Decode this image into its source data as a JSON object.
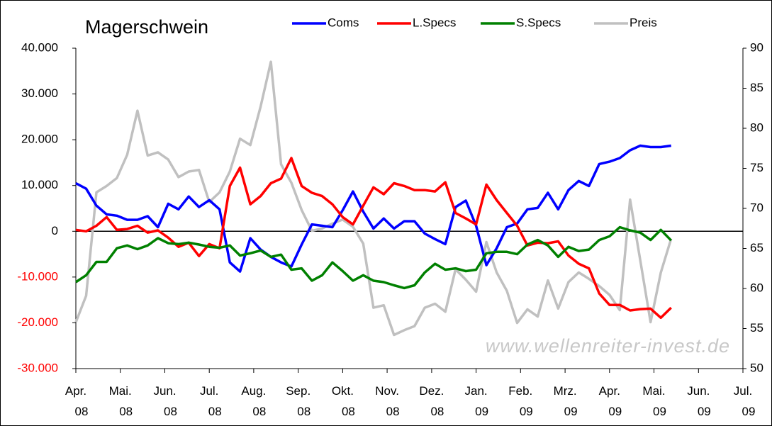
{
  "chart_data": {
    "type": "line",
    "title": "Magerschwein",
    "watermark": "www.wellenreiter-invest.de",
    "x": [
      0,
      1,
      2,
      3,
      4,
      5,
      6,
      7,
      8,
      9,
      10,
      11,
      12,
      13,
      14,
      15,
      16,
      17,
      18,
      19,
      20,
      21,
      22,
      23,
      24,
      25,
      26,
      27,
      28,
      29,
      30,
      31,
      32,
      33,
      34,
      35,
      36,
      37,
      38,
      39,
      40,
      41,
      42,
      43,
      44,
      45,
      46,
      47,
      48,
      49,
      50,
      51,
      52,
      53,
      54,
      55,
      56,
      57,
      58
    ],
    "xlim": [
      0,
      65
    ],
    "xticks": [
      {
        "value": 0,
        "label": "Apr. 08"
      },
      {
        "value": 4.33,
        "label": "Mai. 08"
      },
      {
        "value": 8.67,
        "label": "Jun. 08"
      },
      {
        "value": 13,
        "label": "Jul. 08"
      },
      {
        "value": 17.33,
        "label": "Aug. 08"
      },
      {
        "value": 21.67,
        "label": "Sep. 08"
      },
      {
        "value": 26,
        "label": "Okt. 08"
      },
      {
        "value": 30.33,
        "label": "Nov. 08"
      },
      {
        "value": 34.67,
        "label": "Dez. 08"
      },
      {
        "value": 39,
        "label": "Jan. 09"
      },
      {
        "value": 43.33,
        "label": "Feb. 09"
      },
      {
        "value": 47.67,
        "label": "Mrz. 09"
      },
      {
        "value": 52,
        "label": "Apr. 09"
      },
      {
        "value": 56.33,
        "label": "Mai. 09"
      },
      {
        "value": 60.67,
        "label": "Jun. 09"
      },
      {
        "value": 65,
        "label": "Jul. 09"
      }
    ],
    "ylim": [
      -30000,
      40000
    ],
    "yticks": [
      {
        "value": -30000,
        "label": "-30.000"
      },
      {
        "value": -20000,
        "label": "-20.000"
      },
      {
        "value": -10000,
        "label": "-10.000"
      },
      0,
      {
        "value": 10000,
        "label": "10.000"
      },
      {
        "value": 20000,
        "label": "20.000"
      },
      {
        "value": 30000,
        "label": "30.000"
      },
      {
        "value": 40000,
        "label": "40.000"
      }
    ],
    "y2lim": [
      50,
      90
    ],
    "y2ticks": [
      50,
      55,
      60,
      65,
      70,
      75,
      80,
      85,
      90
    ],
    "series": [
      {
        "name": "Coms",
        "color": "#0000ff",
        "values": [
          10500,
          9300,
          5600,
          3700,
          3400,
          2500,
          2500,
          3300,
          900,
          6000,
          4800,
          7600,
          5300,
          6800,
          4800,
          -6800,
          -8800,
          -1500,
          -4000,
          -5600,
          -6800,
          -7700,
          -2900,
          1500,
          1200,
          900,
          4600,
          8700,
          4300,
          600,
          2800,
          600,
          2200,
          2200,
          -500,
          -1700,
          -2800,
          5300,
          6700,
          1200,
          -7400,
          -3700,
          900,
          1700,
          4800,
          5100,
          8400,
          4800,
          9000,
          11000,
          9900,
          14700,
          15200,
          16000,
          17700,
          18700,
          18400,
          18400,
          18700
        ]
      },
      {
        "name": "L.Specs",
        "color": "#ff0000",
        "values": [
          300,
          0,
          1200,
          3100,
          300,
          500,
          1200,
          -300,
          200,
          -1400,
          -3400,
          -2500,
          -5400,
          -2800,
          -3700,
          9900,
          13900,
          5900,
          7700,
          10500,
          11500,
          16000,
          9900,
          8400,
          7700,
          5900,
          3100,
          1500,
          5600,
          9600,
          8100,
          10500,
          9900,
          9000,
          9000,
          8700,
          10700,
          4000,
          2800,
          1500,
          10200,
          6800,
          4000,
          1200,
          -3100,
          -2500,
          -2600,
          -2200,
          -5300,
          -7100,
          -8100,
          -13600,
          -16100,
          -16100,
          -17300,
          -17000,
          -16900,
          -18900,
          -16700
        ]
      },
      {
        "name": "S.Specs",
        "color": "#008000",
        "values": [
          -11100,
          -9600,
          -6700,
          -6700,
          -3700,
          -3100,
          -3900,
          -3100,
          -1500,
          -2600,
          -2800,
          -2500,
          -2900,
          -3400,
          -3600,
          -3100,
          -5300,
          -4800,
          -4200,
          -5600,
          -5100,
          -8400,
          -8100,
          -10800,
          -9600,
          -6800,
          -8700,
          -10800,
          -9600,
          -10800,
          -11100,
          -11800,
          -12400,
          -11800,
          -9000,
          -7100,
          -8400,
          -8100,
          -8700,
          -8400,
          -4800,
          -4500,
          -4500,
          -5000,
          -2900,
          -1900,
          -3100,
          -5600,
          -3400,
          -4300,
          -4000,
          -1900,
          -1100,
          900,
          200,
          -300,
          -1900,
          300,
          -2000
        ]
      },
      {
        "name": "Preis",
        "color": "#c0c0c0",
        "axis": "y2",
        "values": [
          55.8,
          59.1,
          72.0,
          72.8,
          73.8,
          76.7,
          82.2,
          76.6,
          77.0,
          76.1,
          73.9,
          74.6,
          74.8,
          70.8,
          72.0,
          74.6,
          78.7,
          77.9,
          82.7,
          88.3,
          75.5,
          73.2,
          69.8,
          67.2,
          67.5,
          68.1,
          68.6,
          67.7,
          65.6,
          57.6,
          57.9,
          54.2,
          54.8,
          55.3,
          57.6,
          58.1,
          57.1,
          62.4,
          61.1,
          59.6,
          65.8,
          62.0,
          59.7,
          55.7,
          57.4,
          56.5,
          61.0,
          57.5,
          60.8,
          62.0,
          61.2,
          60.3,
          59.2,
          57.3,
          71.1,
          63.5,
          55.8,
          62.0,
          66.2
        ]
      }
    ]
  }
}
